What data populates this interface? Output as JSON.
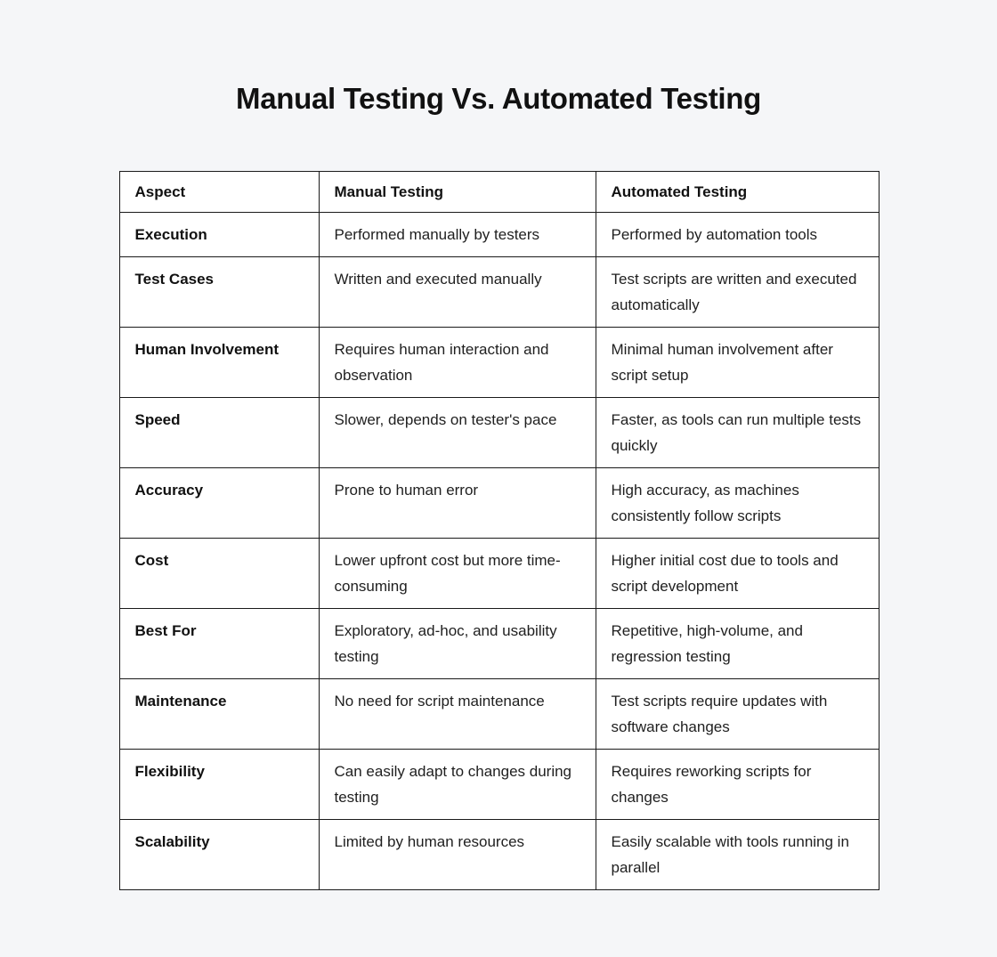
{
  "page": {
    "title": "Manual Testing Vs. Automated Testing",
    "background_color": "#f5f6f8",
    "cell_background_color": "#ffffff",
    "border_color": "#1a1a1a",
    "text_color": "#111111"
  },
  "chart_data": {
    "type": "table",
    "title": "Manual Testing Vs. Automated Testing",
    "columns": [
      "Aspect",
      "Manual Testing",
      "Automated Testing"
    ],
    "rows": [
      [
        "Execution",
        "Performed manually by testers",
        "Performed by automation tools"
      ],
      [
        "Test Cases",
        "Written and executed manually",
        "Test scripts are written and executed automatically"
      ],
      [
        "Human Involvement",
        "Requires human interaction and observation",
        "Minimal human involvement after script setup"
      ],
      [
        "Speed",
        "Slower, depends on tester's pace",
        "Faster, as tools can run multiple tests quickly"
      ],
      [
        "Accuracy",
        "Prone to human error",
        "High accuracy, as machines consistently follow scripts"
      ],
      [
        "Cost",
        "Lower upfront cost but more time-consuming",
        "Higher initial cost due to tools and script development"
      ],
      [
        "Best For",
        "Exploratory, ad-hoc, and usability testing",
        "Repetitive, high-volume, and regression testing"
      ],
      [
        "Maintenance",
        "No need for script maintenance",
        "Test scripts require updates with software changes"
      ],
      [
        "Flexibility",
        "Can easily adapt to changes during testing",
        "Requires reworking scripts for changes"
      ],
      [
        "Scalability",
        "Limited by human resources",
        "Easily scalable with tools running in parallel"
      ]
    ]
  }
}
